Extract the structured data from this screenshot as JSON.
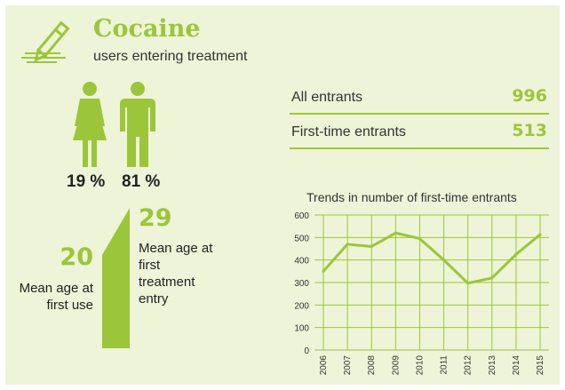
{
  "header": {
    "title": "Cocaine",
    "subtitle": "users entering treatment",
    "icon": "pencil-icon"
  },
  "gender": {
    "female_percent": "19 %",
    "male_percent": "81 %",
    "female_icon": "female-figure-icon",
    "male_icon": "male-figure-icon"
  },
  "ages": {
    "first_use_value": "20",
    "first_use_label": "Mean age at first use",
    "first_treatment_value": "29",
    "first_treatment_label": "Mean age at first treatment entry"
  },
  "stats": {
    "all_label": "All entrants",
    "all_value": "996",
    "first_label": "First-time entrants",
    "first_value": "513"
  },
  "colors": {
    "accent": "#9bc63a",
    "background": "#eef4d8",
    "text": "#222222"
  },
  "chart_data": {
    "type": "line",
    "title": "Trends in number of first-time entrants",
    "x": [
      "2006",
      "2007",
      "2008",
      "2009",
      "2010",
      "2011",
      "2012",
      "2013",
      "2014",
      "2015"
    ],
    "series": [
      {
        "values": [
          350,
          470,
          460,
          520,
          495,
          400,
          297,
          320,
          425,
          513
        ]
      }
    ],
    "ylim": [
      0,
      600
    ],
    "yticks": [
      "0",
      "100",
      "200",
      "300",
      "400",
      "500",
      "600"
    ],
    "grid": true,
    "xlabel": "",
    "ylabel": ""
  }
}
